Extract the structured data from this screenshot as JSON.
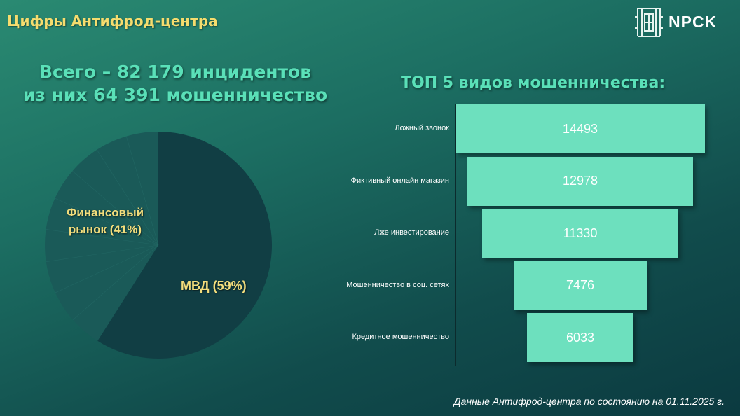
{
  "header": {
    "title": "Цифры Антифрод-центра",
    "brand": "NPCK",
    "logo_icon": "building-emblem-icon"
  },
  "headline": {
    "line1": "Всего – 82 179 инцидентов",
    "line2": "из них 64 391 мошенничество"
  },
  "footer": {
    "note": "Данные Антифрод-центра по состоянию на 01.11.2025 г."
  },
  "chart_data": [
    {
      "type": "pie",
      "title": "",
      "slices": [
        {
          "label": "МВД (59%)",
          "value": 59,
          "color": "#113e44"
        },
        {
          "label": "Финансовый рынок (41%)",
          "value": 41,
          "color": "#1a5a58"
        }
      ],
      "labels": {
        "financial_line1": "Финансовый",
        "financial_line2": "рынок (41%)",
        "mvd": "МВД (59%)"
      }
    },
    {
      "type": "bar",
      "orientation": "horizontal-funnel",
      "title": "ТОП 5 видов мошенничества:",
      "categories": [
        "Ложный звонок",
        "Фиктивный онлайн магазин",
        "Лже инвестирование",
        "Мошенничество в соц. сетях",
        "Кредитное мошенничество"
      ],
      "values": [
        14493,
        12978,
        11330,
        7476,
        6033
      ],
      "value_labels": [
        "14493",
        "12978",
        "11330",
        "7476",
        "6033"
      ],
      "bar_color": "#6de0be"
    }
  ]
}
